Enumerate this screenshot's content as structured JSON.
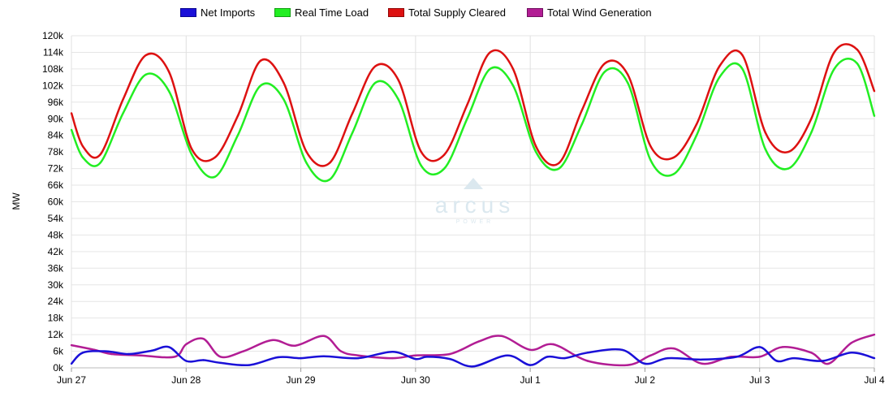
{
  "watermark": {
    "brand": "arcus",
    "sub": "POWER"
  },
  "chart_data": {
    "type": "line",
    "title": "",
    "xlabel": "",
    "ylabel": "MW",
    "ylim": [
      0,
      120000
    ],
    "yticks": [
      0,
      6000,
      12000,
      18000,
      24000,
      30000,
      36000,
      42000,
      48000,
      54000,
      60000,
      66000,
      72000,
      78000,
      84000,
      90000,
      96000,
      102000,
      108000,
      114000,
      120000
    ],
    "ytick_labels": [
      "0k",
      "6k",
      "12k",
      "18k",
      "24k",
      "30k",
      "36k",
      "42k",
      "48k",
      "54k",
      "60k",
      "66k",
      "72k",
      "78k",
      "84k",
      "90k",
      "96k",
      "102k",
      "108k",
      "114k",
      "120k"
    ],
    "xlim": [
      "Jun 27",
      "Jul 4"
    ],
    "xticks": [
      "Jun 27",
      "Jun 28",
      "Jun 29",
      "Jun 30",
      "Jul 1",
      "Jul 2",
      "Jul 3",
      "Jul 4"
    ],
    "x_unit": "days",
    "grid": true,
    "legend_position": "top",
    "series": [
      {
        "name": "Net Imports",
        "color": "#1a10d8",
        "x": [
          0,
          0.1,
          0.3,
          0.5,
          0.7,
          0.85,
          1.0,
          1.15,
          1.3,
          1.55,
          1.8,
          2.0,
          2.2,
          2.5,
          2.8,
          3.0,
          3.1,
          3.3,
          3.5,
          3.8,
          4.0,
          4.15,
          4.3,
          4.5,
          4.8,
          5.0,
          5.2,
          5.5,
          5.8,
          6.0,
          6.15,
          6.3,
          6.55,
          6.8,
          7.0
        ],
        "y": [
          1500,
          5500,
          6000,
          5000,
          6200,
          7500,
          2500,
          2800,
          1800,
          1000,
          3800,
          3500,
          4200,
          3500,
          5800,
          3200,
          4000,
          3200,
          500,
          4500,
          1000,
          4000,
          3500,
          5500,
          6500,
          1500,
          3500,
          3000,
          4000,
          7500,
          2500,
          3500,
          2500,
          5500,
          3500
        ]
      },
      {
        "name": "Real Time Load",
        "color": "#22ee22",
        "x": [
          0,
          0.1,
          0.25,
          0.45,
          0.65,
          0.85,
          1.05,
          1.25,
          1.45,
          1.65,
          1.85,
          2.05,
          2.25,
          2.45,
          2.65,
          2.85,
          3.05,
          3.25,
          3.45,
          3.65,
          3.85,
          4.05,
          4.25,
          4.45,
          4.65,
          4.85,
          5.05,
          5.25,
          5.45,
          5.65,
          5.85,
          6.05,
          6.25,
          6.45,
          6.65,
          6.85,
          7.0
        ],
        "y": [
          86000,
          76000,
          74000,
          92000,
          106000,
          100000,
          77000,
          69000,
          84000,
          102000,
          97000,
          74000,
          68000,
          85000,
          103000,
          97000,
          73000,
          72000,
          90000,
          108000,
          102000,
          78000,
          72000,
          88000,
          107000,
          103000,
          75000,
          70000,
          84000,
          105000,
          108000,
          79000,
          72000,
          85000,
          108000,
          110000,
          91000
        ]
      },
      {
        "name": "Total Supply Cleared",
        "color": "#dd1111",
        "x": [
          0,
          0.1,
          0.25,
          0.45,
          0.65,
          0.85,
          1.05,
          1.25,
          1.45,
          1.65,
          1.85,
          2.05,
          2.25,
          2.45,
          2.65,
          2.85,
          3.05,
          3.25,
          3.45,
          3.65,
          3.85,
          4.05,
          4.25,
          4.45,
          4.65,
          4.85,
          5.05,
          5.25,
          5.45,
          5.65,
          5.85,
          6.05,
          6.25,
          6.45,
          6.65,
          6.85,
          7.0
        ],
        "y": [
          92000,
          80000,
          77000,
          97000,
          113000,
          107000,
          79000,
          76000,
          91000,
          111000,
          103000,
          78000,
          74000,
          92000,
          109000,
          104000,
          78000,
          77000,
          95000,
          114000,
          108000,
          80000,
          74000,
          93000,
          110000,
          106000,
          80000,
          76000,
          88000,
          109000,
          113000,
          85000,
          78000,
          90000,
          114000,
          115000,
          100000
        ]
      },
      {
        "name": "Total Wind Generation",
        "color": "#b21d94",
        "x": [
          0,
          0.2,
          0.35,
          0.6,
          0.9,
          1.0,
          1.15,
          1.3,
          1.5,
          1.75,
          1.95,
          2.2,
          2.35,
          2.5,
          2.8,
          3.0,
          3.3,
          3.55,
          3.75,
          4.0,
          4.2,
          4.5,
          4.85,
          5.05,
          5.25,
          5.5,
          5.75,
          6.0,
          6.2,
          6.45,
          6.6,
          6.8,
          7.0
        ],
        "y": [
          8200,
          6500,
          5000,
          4500,
          4000,
          8500,
          10500,
          4000,
          6000,
          10000,
          8000,
          11500,
          6000,
          4500,
          3500,
          4500,
          5000,
          9500,
          11500,
          6500,
          8500,
          2500,
          1000,
          4500,
          7000,
          1500,
          4000,
          4000,
          7500,
          5500,
          1500,
          9000,
          12000
        ]
      }
    ]
  }
}
